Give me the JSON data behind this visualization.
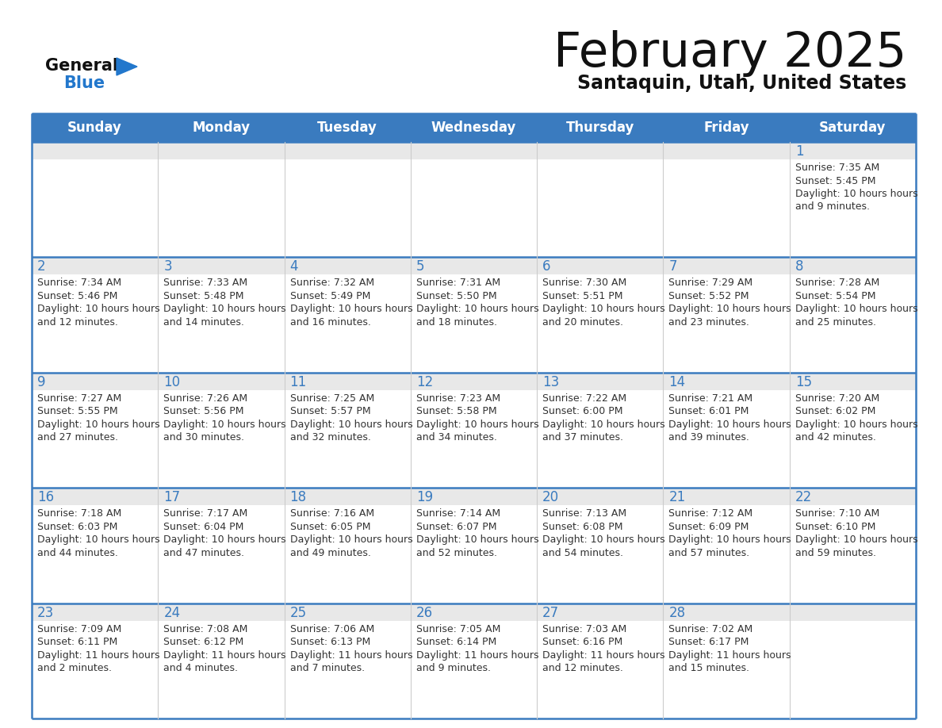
{
  "title": "February 2025",
  "subtitle": "Santaquin, Utah, United States",
  "header_bg_color": "#3a7bbf",
  "header_text_color": "#ffffff",
  "day_names": [
    "Sunday",
    "Monday",
    "Tuesday",
    "Wednesday",
    "Thursday",
    "Friday",
    "Saturday"
  ],
  "day_number_strip_color": "#e8e8e8",
  "cell_bg_color": "#ffffff",
  "grid_line_color": "#3a7bbf",
  "day_number_color": "#3a7bbf",
  "cell_text_color": "#333333",
  "logo_general_color": "#111111",
  "logo_blue_color": "#2277cc",
  "calendar_data": [
    [
      null,
      null,
      null,
      null,
      null,
      null,
      1
    ],
    [
      2,
      3,
      4,
      5,
      6,
      7,
      8
    ],
    [
      9,
      10,
      11,
      12,
      13,
      14,
      15
    ],
    [
      16,
      17,
      18,
      19,
      20,
      21,
      22
    ],
    [
      23,
      24,
      25,
      26,
      27,
      28,
      null
    ]
  ],
  "sunrise_data": {
    "1": {
      "sunrise": "7:35 AM",
      "sunset": "5:45 PM",
      "daylight": "10 hours and 9 minutes"
    },
    "2": {
      "sunrise": "7:34 AM",
      "sunset": "5:46 PM",
      "daylight": "10 hours and 12 minutes"
    },
    "3": {
      "sunrise": "7:33 AM",
      "sunset": "5:48 PM",
      "daylight": "10 hours and 14 minutes"
    },
    "4": {
      "sunrise": "7:32 AM",
      "sunset": "5:49 PM",
      "daylight": "10 hours and 16 minutes"
    },
    "5": {
      "sunrise": "7:31 AM",
      "sunset": "5:50 PM",
      "daylight": "10 hours and 18 minutes"
    },
    "6": {
      "sunrise": "7:30 AM",
      "sunset": "5:51 PM",
      "daylight": "10 hours and 20 minutes"
    },
    "7": {
      "sunrise": "7:29 AM",
      "sunset": "5:52 PM",
      "daylight": "10 hours and 23 minutes"
    },
    "8": {
      "sunrise": "7:28 AM",
      "sunset": "5:54 PM",
      "daylight": "10 hours and 25 minutes"
    },
    "9": {
      "sunrise": "7:27 AM",
      "sunset": "5:55 PM",
      "daylight": "10 hours and 27 minutes"
    },
    "10": {
      "sunrise": "7:26 AM",
      "sunset": "5:56 PM",
      "daylight": "10 hours and 30 minutes"
    },
    "11": {
      "sunrise": "7:25 AM",
      "sunset": "5:57 PM",
      "daylight": "10 hours and 32 minutes"
    },
    "12": {
      "sunrise": "7:23 AM",
      "sunset": "5:58 PM",
      "daylight": "10 hours and 34 minutes"
    },
    "13": {
      "sunrise": "7:22 AM",
      "sunset": "6:00 PM",
      "daylight": "10 hours and 37 minutes"
    },
    "14": {
      "sunrise": "7:21 AM",
      "sunset": "6:01 PM",
      "daylight": "10 hours and 39 minutes"
    },
    "15": {
      "sunrise": "7:20 AM",
      "sunset": "6:02 PM",
      "daylight": "10 hours and 42 minutes"
    },
    "16": {
      "sunrise": "7:18 AM",
      "sunset": "6:03 PM",
      "daylight": "10 hours and 44 minutes"
    },
    "17": {
      "sunrise": "7:17 AM",
      "sunset": "6:04 PM",
      "daylight": "10 hours and 47 minutes"
    },
    "18": {
      "sunrise": "7:16 AM",
      "sunset": "6:05 PM",
      "daylight": "10 hours and 49 minutes"
    },
    "19": {
      "sunrise": "7:14 AM",
      "sunset": "6:07 PM",
      "daylight": "10 hours and 52 minutes"
    },
    "20": {
      "sunrise": "7:13 AM",
      "sunset": "6:08 PM",
      "daylight": "10 hours and 54 minutes"
    },
    "21": {
      "sunrise": "7:12 AM",
      "sunset": "6:09 PM",
      "daylight": "10 hours and 57 minutes"
    },
    "22": {
      "sunrise": "7:10 AM",
      "sunset": "6:10 PM",
      "daylight": "10 hours and 59 minutes"
    },
    "23": {
      "sunrise": "7:09 AM",
      "sunset": "6:11 PM",
      "daylight": "11 hours and 2 minutes"
    },
    "24": {
      "sunrise": "7:08 AM",
      "sunset": "6:12 PM",
      "daylight": "11 hours and 4 minutes"
    },
    "25": {
      "sunrise": "7:06 AM",
      "sunset": "6:13 PM",
      "daylight": "11 hours and 7 minutes"
    },
    "26": {
      "sunrise": "7:05 AM",
      "sunset": "6:14 PM",
      "daylight": "11 hours and 9 minutes"
    },
    "27": {
      "sunrise": "7:03 AM",
      "sunset": "6:16 PM",
      "daylight": "11 hours and 12 minutes"
    },
    "28": {
      "sunrise": "7:02 AM",
      "sunset": "6:17 PM",
      "daylight": "11 hours and 15 minutes"
    }
  }
}
